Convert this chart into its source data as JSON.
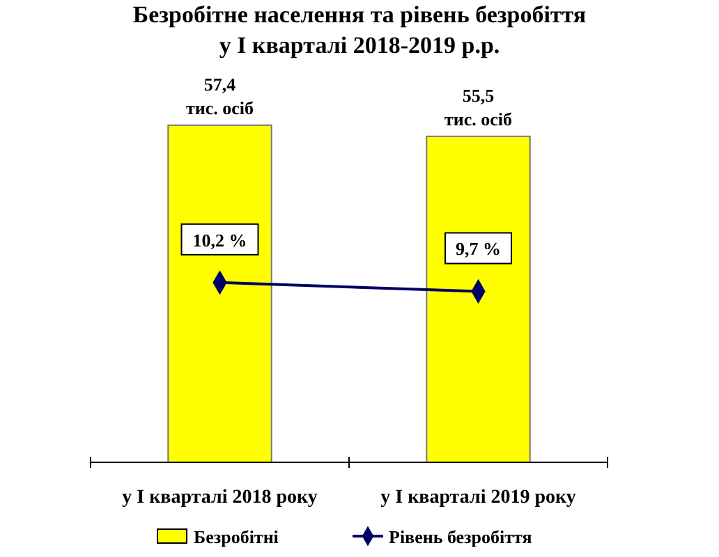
{
  "chart_data": {
    "type": "bar",
    "title": "Безробітне населення та рівень безробіття\nу І кварталі 2018-2019 р.р.",
    "categories": [
      "у І кварталі 2018 року",
      "у І кварталі 2019 року"
    ],
    "series": [
      {
        "name": "Безробітні",
        "color": "#ffff00",
        "values": [
          57.4,
          55.5
        ],
        "value_labels": [
          "57,4\nтис. осіб",
          "55,5\nтис. осіб"
        ]
      },
      {
        "name": "Рівень безробіття",
        "type": "line",
        "axis": "y2",
        "color": "#000066",
        "values": [
          10.2,
          9.7
        ],
        "value_labels": [
          "10,2 %",
          "9,7 %"
        ],
        "marker": "diamond",
        "line_style": "solid"
      }
    ],
    "tick_labels": "x",
    "grid": false,
    "legend": "bottom"
  }
}
